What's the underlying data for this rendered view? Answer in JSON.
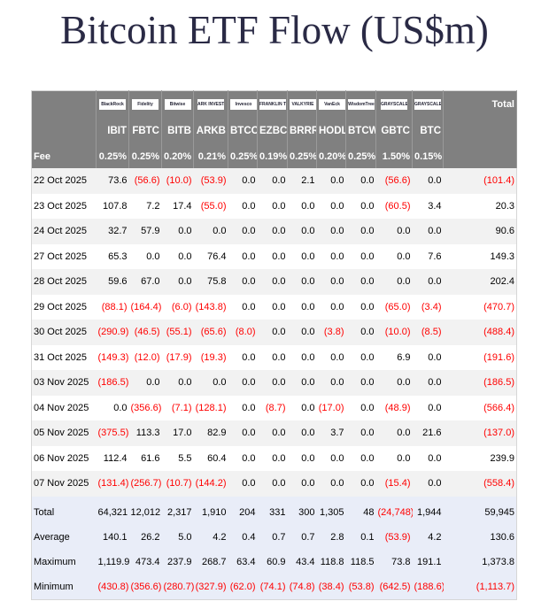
{
  "title": "Bitcoin ETF Flow (US$m)",
  "logos": [
    "BlackRock",
    "Fidelity",
    "Bitwise",
    "ARK INVEST",
    "Invesco",
    "FRANKLIN TEMPLETON",
    "VALKYRIE",
    "VanEck",
    "WisdomTree",
    "GRAYSCALE",
    "GRAYSCALE"
  ],
  "total_header": "Total",
  "tickers": [
    "IBIT",
    "FBTC",
    "BITB",
    "ARKB",
    "BTCO",
    "EZBC",
    "BRRR",
    "HODL",
    "BTCW",
    "GBTC",
    "BTC"
  ],
  "fee_label": "Fee",
  "fees": [
    "0.25%",
    "0.25%",
    "0.20%",
    "0.21%",
    "0.25%",
    "0.19%",
    "0.25%",
    "0.20%",
    "0.25%",
    "1.50%",
    "0.15%"
  ],
  "negative_color": "#ff0000",
  "rows": [
    {
      "date": "22 Oct 2025",
      "values": [
        "73.6",
        "(56.6)",
        "(10.0)",
        "(53.9)",
        "0.0",
        "0.0",
        "2.1",
        "0.0",
        "0.0",
        "(56.6)",
        "0.0",
        "(101.4)"
      ]
    },
    {
      "date": "23 Oct 2025",
      "values": [
        "107.8",
        "7.2",
        "17.4",
        "(55.0)",
        "0.0",
        "0.0",
        "0.0",
        "0.0",
        "0.0",
        "(60.5)",
        "3.4",
        "20.3"
      ]
    },
    {
      "date": "24 Oct 2025",
      "values": [
        "32.7",
        "57.9",
        "0.0",
        "0.0",
        "0.0",
        "0.0",
        "0.0",
        "0.0",
        "0.0",
        "0.0",
        "0.0",
        "90.6"
      ]
    },
    {
      "date": "27 Oct 2025",
      "values": [
        "65.3",
        "0.0",
        "0.0",
        "76.4",
        "0.0",
        "0.0",
        "0.0",
        "0.0",
        "0.0",
        "0.0",
        "7.6",
        "149.3"
      ]
    },
    {
      "date": "28 Oct 2025",
      "values": [
        "59.6",
        "67.0",
        "0.0",
        "75.8",
        "0.0",
        "0.0",
        "0.0",
        "0.0",
        "0.0",
        "0.0",
        "0.0",
        "202.4"
      ]
    },
    {
      "date": "29 Oct 2025",
      "values": [
        "(88.1)",
        "(164.4)",
        "(6.0)",
        "(143.8)",
        "0.0",
        "0.0",
        "0.0",
        "0.0",
        "0.0",
        "(65.0)",
        "(3.4)",
        "(470.7)"
      ]
    },
    {
      "date": "30 Oct 2025",
      "values": [
        "(290.9)",
        "(46.5)",
        "(55.1)",
        "(65.6)",
        "(8.0)",
        "0.0",
        "0.0",
        "(3.8)",
        "0.0",
        "(10.0)",
        "(8.5)",
        "(488.4)"
      ]
    },
    {
      "date": "31 Oct 2025",
      "values": [
        "(149.3)",
        "(12.0)",
        "(17.9)",
        "(19.3)",
        "0.0",
        "0.0",
        "0.0",
        "0.0",
        "0.0",
        "6.9",
        "0.0",
        "(191.6)"
      ]
    },
    {
      "date": "03 Nov 2025",
      "values": [
        "(186.5)",
        "0.0",
        "0.0",
        "0.0",
        "0.0",
        "0.0",
        "0.0",
        "0.0",
        "0.0",
        "0.0",
        "0.0",
        "(186.5)"
      ]
    },
    {
      "date": "04 Nov 2025",
      "values": [
        "0.0",
        "(356.6)",
        "(7.1)",
        "(128.1)",
        "0.0",
        "(8.7)",
        "0.0",
        "(17.0)",
        "0.0",
        "(48.9)",
        "0.0",
        "(566.4)"
      ]
    },
    {
      "date": "05 Nov 2025",
      "values": [
        "(375.5)",
        "113.3",
        "17.0",
        "82.9",
        "0.0",
        "0.0",
        "0.0",
        "3.7",
        "0.0",
        "0.0",
        "21.6",
        "(137.0)"
      ]
    },
    {
      "date": "06 Nov 2025",
      "values": [
        "112.4",
        "61.6",
        "5.5",
        "60.4",
        "0.0",
        "0.0",
        "0.0",
        "0.0",
        "0.0",
        "0.0",
        "0.0",
        "239.9"
      ]
    },
    {
      "date": "07 Nov 2025",
      "values": [
        "(131.4)",
        "(256.7)",
        "(10.7)",
        "(144.2)",
        "0.0",
        "0.0",
        "0.0",
        "0.0",
        "0.0",
        "(15.4)",
        "0.0",
        "(558.4)"
      ]
    }
  ],
  "summary": [
    {
      "label": "Total",
      "values": [
        "64,321",
        "12,012",
        "2,317",
        "1,910",
        "204",
        "331",
        "300",
        "1,305",
        "48",
        "(24,748)",
        "1,944",
        "59,945"
      ]
    },
    {
      "label": "Average",
      "values": [
        "140.1",
        "26.2",
        "5.0",
        "4.2",
        "0.4",
        "0.7",
        "0.7",
        "2.8",
        "0.1",
        "(53.9)",
        "4.2",
        "130.6"
      ]
    },
    {
      "label": "Maximum",
      "values": [
        "1,119.9",
        "473.4",
        "237.9",
        "268.7",
        "63.4",
        "60.9",
        "43.4",
        "118.8",
        "118.5",
        "73.8",
        "191.1",
        "1,373.8"
      ]
    },
    {
      "label": "Minimum",
      "values": [
        "(430.8)",
        "(356.6)",
        "(280.7)",
        "(327.9)",
        "(62.0)",
        "(74.1)",
        "(74.8)",
        "(38.4)",
        "(53.8)",
        "(642.5)",
        "(188.6)",
        "(1,113.7)"
      ]
    }
  ]
}
